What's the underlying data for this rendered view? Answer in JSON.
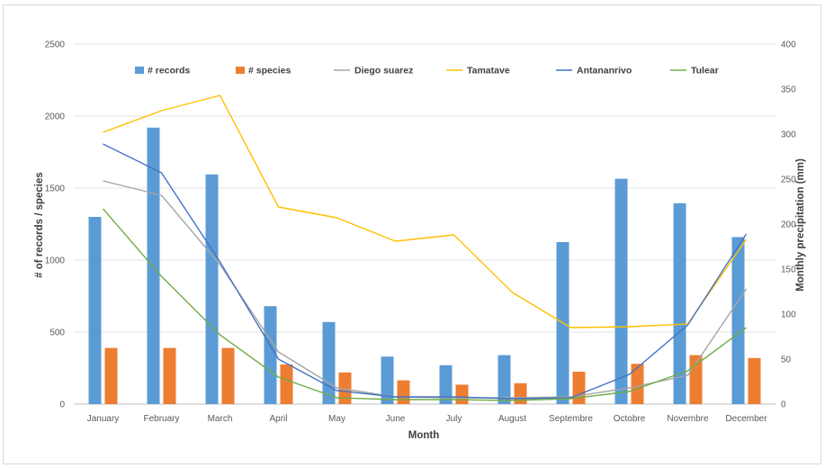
{
  "chart_data": {
    "type": "bar",
    "categories": [
      "January",
      "February",
      "March",
      "April",
      "May",
      "June",
      "July",
      "August",
      "Septembre",
      "Octobre",
      "Novembre",
      "December"
    ],
    "xlabel": "Month",
    "ylabel": "# of records / species",
    "ylabel_right": "Monthly precipitation (mm)",
    "ylim": [
      0,
      2500
    ],
    "ylim_right": [
      0,
      400
    ],
    "yticks": [
      "0",
      "500",
      "1000",
      "1500",
      "2000",
      "2500"
    ],
    "yticks_right": [
      "0",
      "50",
      "100",
      "150",
      "200",
      "250",
      "300",
      "350",
      "400"
    ],
    "grid": true,
    "legend_position": "top",
    "bar_series": [
      {
        "name": "# records",
        "color": "#5b9bd5",
        "values": [
          1300,
          1920,
          1595,
          680,
          570,
          330,
          270,
          340,
          1125,
          1565,
          1395,
          1160
        ]
      },
      {
        "name": "# species",
        "color": "#ed7d31",
        "values": [
          390,
          390,
          390,
          275,
          220,
          165,
          135,
          145,
          225,
          280,
          340,
          320
        ]
      }
    ],
    "line_series": [
      {
        "name": "Diego suarez",
        "color": "#a5a5a5",
        "axis": "right",
        "values": [
          248,
          232,
          155,
          58,
          18,
          8,
          7,
          7,
          8,
          18,
          32,
          128
        ]
      },
      {
        "name": "Tamatave",
        "color": "#ffc000",
        "axis": "right",
        "values": [
          302,
          326,
          343,
          219,
          207,
          181,
          188,
          124,
          85,
          86,
          89,
          183
        ]
      },
      {
        "name": "Antananrivo",
        "color": "#4472c4",
        "axis": "right",
        "values": [
          289,
          257,
          158,
          50,
          15,
          8,
          8,
          6,
          7,
          33,
          88,
          189
        ]
      },
      {
        "name": "Tulear",
        "color": "#70ad47",
        "axis": "right",
        "values": [
          217,
          142,
          77,
          30,
          7,
          5,
          5,
          4,
          6,
          14,
          37,
          85
        ]
      }
    ]
  }
}
